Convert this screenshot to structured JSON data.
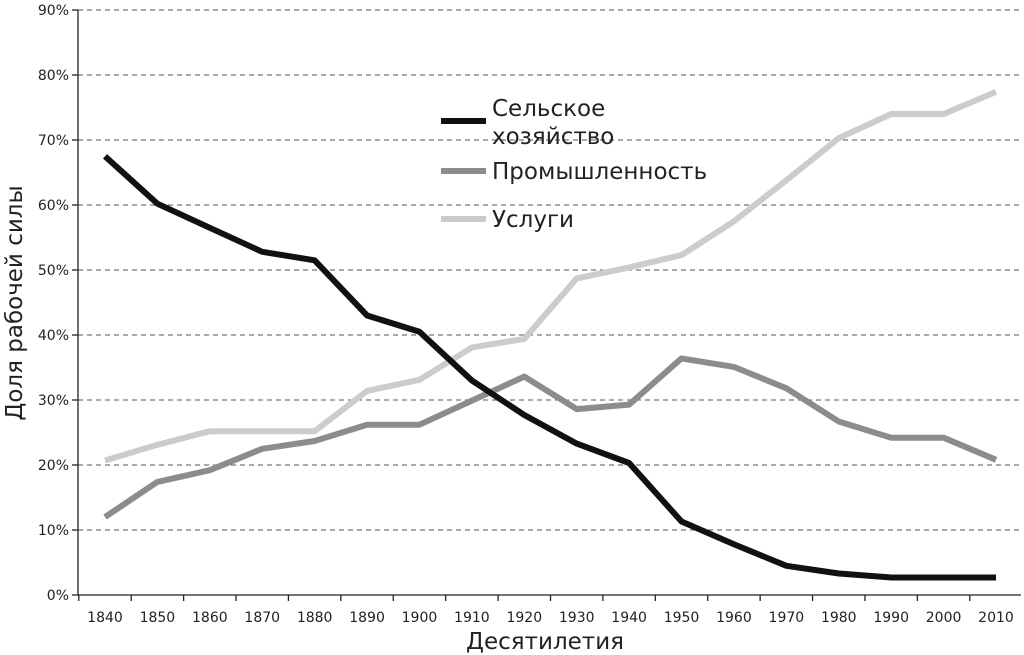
{
  "chart_data": {
    "type": "line",
    "xlabel": "Десятилетия",
    "ylabel": "Доля рабочей силы",
    "ylim": [
      0,
      90
    ],
    "yticks": [
      "0%",
      "10%",
      "20%",
      "30%",
      "40%",
      "50%",
      "60%",
      "70%",
      "80%",
      "90%"
    ],
    "categories": [
      "1840",
      "1850",
      "1860",
      "1870",
      "1880",
      "1890",
      "1900",
      "1910",
      "1920",
      "1930",
      "1940",
      "1950",
      "1960",
      "1970",
      "1980",
      "1990",
      "2000",
      "2010"
    ],
    "grid": "horizontal dashed",
    "legend_position": "upper-center",
    "series": [
      {
        "name": "Сельское хозяйство",
        "name_lines": [
          "Сельское",
          "хозяйство"
        ],
        "color": "#111111",
        "values": [
          67.5,
          60.2,
          56.5,
          52.8,
          51.5,
          43.0,
          40.5,
          33.0,
          27.7,
          23.3,
          20.3,
          11.3,
          7.8,
          4.5,
          3.3,
          2.7,
          2.7,
          2.7
        ]
      },
      {
        "name": "Промышленность",
        "name_lines": [
          "Промышленность"
        ],
        "color": "#8c8c8c",
        "values": [
          12.0,
          17.4,
          19.2,
          22.5,
          23.7,
          26.2,
          26.2,
          29.9,
          33.6,
          28.6,
          29.3,
          36.4,
          35.1,
          31.8,
          26.7,
          24.2,
          24.2,
          20.8
        ]
      },
      {
        "name": "Услуги",
        "name_lines": [
          "Услуги"
        ],
        "color": "#cccccc",
        "values": [
          20.7,
          23.1,
          25.2,
          25.2,
          25.2,
          31.4,
          33.1,
          38.1,
          39.4,
          48.7,
          50.4,
          52.3,
          57.5,
          63.8,
          70.3,
          74.0,
          74.0,
          77.4
        ]
      }
    ]
  }
}
